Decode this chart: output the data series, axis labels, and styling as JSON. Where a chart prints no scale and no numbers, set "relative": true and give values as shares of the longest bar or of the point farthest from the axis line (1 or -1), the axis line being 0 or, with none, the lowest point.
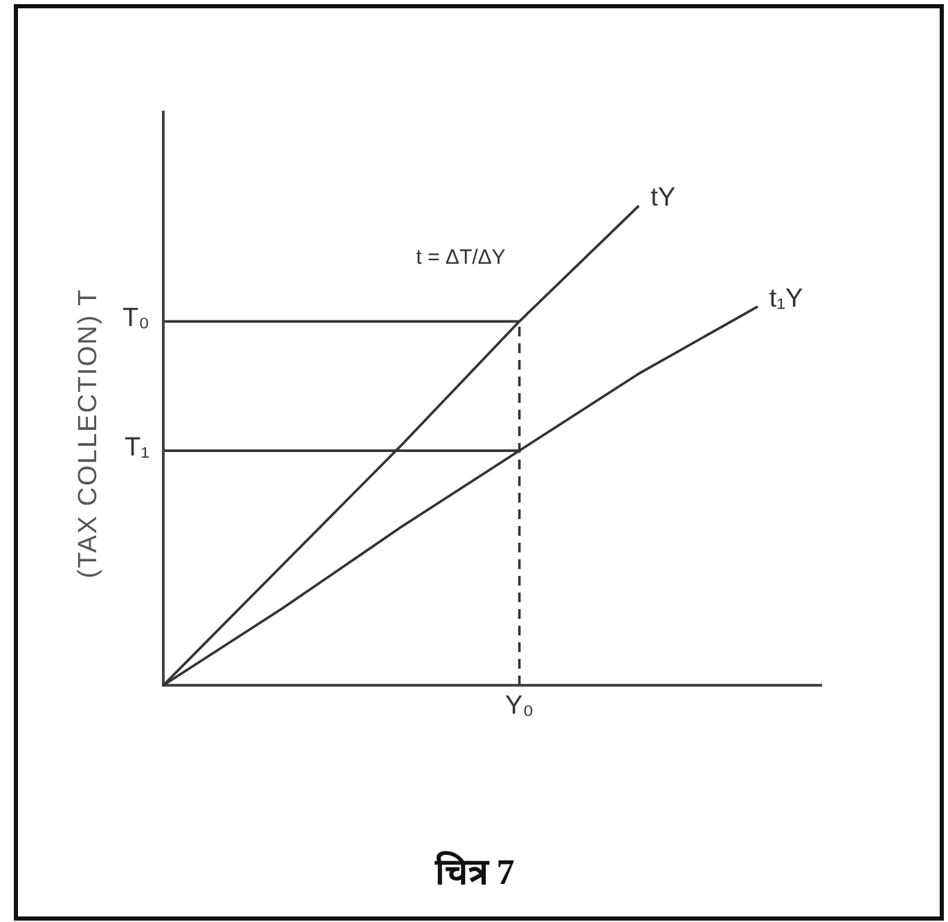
{
  "chart_data": {
    "type": "line",
    "relative": true,
    "categories": [
      null,
      null,
      null,
      null,
      null,
      null
    ],
    "series": [
      {
        "name": "tY",
        "color": "#333333",
        "values": [
          0,
          0.25,
          0.5,
          0.76,
          1,
          null
        ]
      },
      {
        "name": "t₁Y",
        "color": "#333333",
        "values": [
          0,
          0.16,
          0.33,
          0.49,
          0.65,
          0.79
        ]
      }
    ],
    "ylabel": "(TAX COLLECTION) T",
    "ref_lines": [
      {
        "axis": "y",
        "value": 0.76,
        "label": "T₀",
        "color": "#333333"
      },
      {
        "axis": "y",
        "value": 0.49,
        "label": "T₁",
        "color": "#333333"
      }
    ],
    "annotations": [
      "t = ΔT/ΔY",
      "Y₀",
      "चित्र 7"
    ],
    "line_style": "solid"
  }
}
